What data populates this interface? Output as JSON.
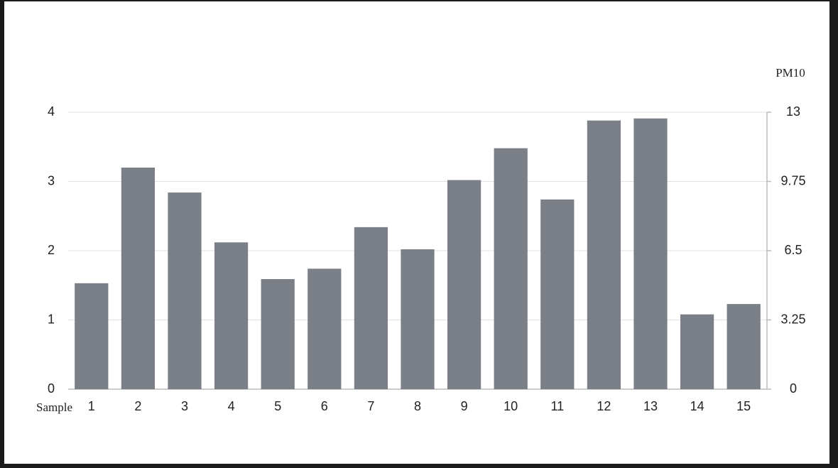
{
  "chart_data": {
    "type": "bar",
    "x_label": "Sample",
    "y2_label": "PM10",
    "categories": [
      "1",
      "2",
      "3",
      "4",
      "5",
      "6",
      "7",
      "8",
      "9",
      "10",
      "11",
      "12",
      "13",
      "14",
      "15"
    ],
    "values": [
      1.53,
      3.2,
      2.84,
      2.12,
      1.59,
      1.74,
      2.34,
      2.02,
      3.02,
      3.48,
      2.74,
      3.88,
      3.91,
      1.08,
      1.23
    ],
    "color": "#7a7f88",
    "ylim": [
      0,
      4
    ],
    "yticks": [
      0,
      1,
      2,
      3,
      4
    ],
    "y2lim": [
      0,
      13
    ],
    "y2ticks": [
      0,
      3.25,
      6.5,
      9.75,
      13
    ],
    "grid": true
  }
}
